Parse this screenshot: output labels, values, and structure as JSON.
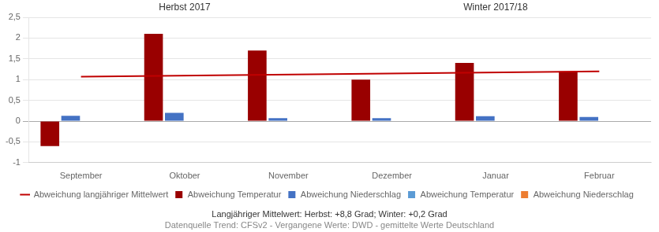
{
  "chart_data": {
    "type": "bar",
    "categories": [
      "September",
      "Oktober",
      "November",
      "Dezember",
      "Januar",
      "Februar"
    ],
    "series": [
      {
        "name": "Abweichung Temperatur",
        "color": "#990000",
        "values": [
          -0.6,
          2.1,
          1.7,
          1.0,
          1.4,
          1.2
        ]
      },
      {
        "name": "Abweichung Niederschlag",
        "color": "#4472c4",
        "values": [
          0.13,
          0.2,
          0.07,
          0.07,
          0.12,
          0.1
        ]
      },
      {
        "name": "Abweichung langjähriger Mittelwert",
        "type": "line",
        "color": "#c00000",
        "values": [
          1.07,
          null,
          null,
          null,
          null,
          1.2
        ]
      },
      {
        "name": "Abweichung Temperatur",
        "color": "#5b9bd5",
        "values": [
          0.0,
          0.0,
          0.0,
          0.0,
          0.0,
          0.0
        ]
      },
      {
        "name": "Abweichung Niederschlag",
        "color": "#ed7d31",
        "values": [
          0.0,
          0.0,
          0.0,
          0.0,
          0.0,
          0.0
        ]
      }
    ],
    "ylim": [
      -1.0,
      2.5
    ],
    "yticks": [
      -1,
      {
        "value": -0.5,
        "label": "-0,5"
      },
      0,
      {
        "value": 0.5,
        "label": "0,5"
      },
      1,
      {
        "value": 1.5,
        "label": "1,5"
      },
      2,
      {
        "value": 2.5,
        "label": "2,5"
      }
    ],
    "grid": true,
    "legend": "bottom",
    "annotations": [
      {
        "text": "Herbst 2017",
        "x": "Oktober"
      },
      {
        "text": "Winter 2017/18",
        "x": "Januar"
      },
      {
        "text": "Langjähriger Mittelwert: Herbst: +8,8 Grad; Winter: +0,2 Grad"
      },
      {
        "text": "Datenquelle Trend: CFSv2 - Vergangene Werte: DWD - gemittelte Werte Deutschland"
      }
    ]
  }
}
